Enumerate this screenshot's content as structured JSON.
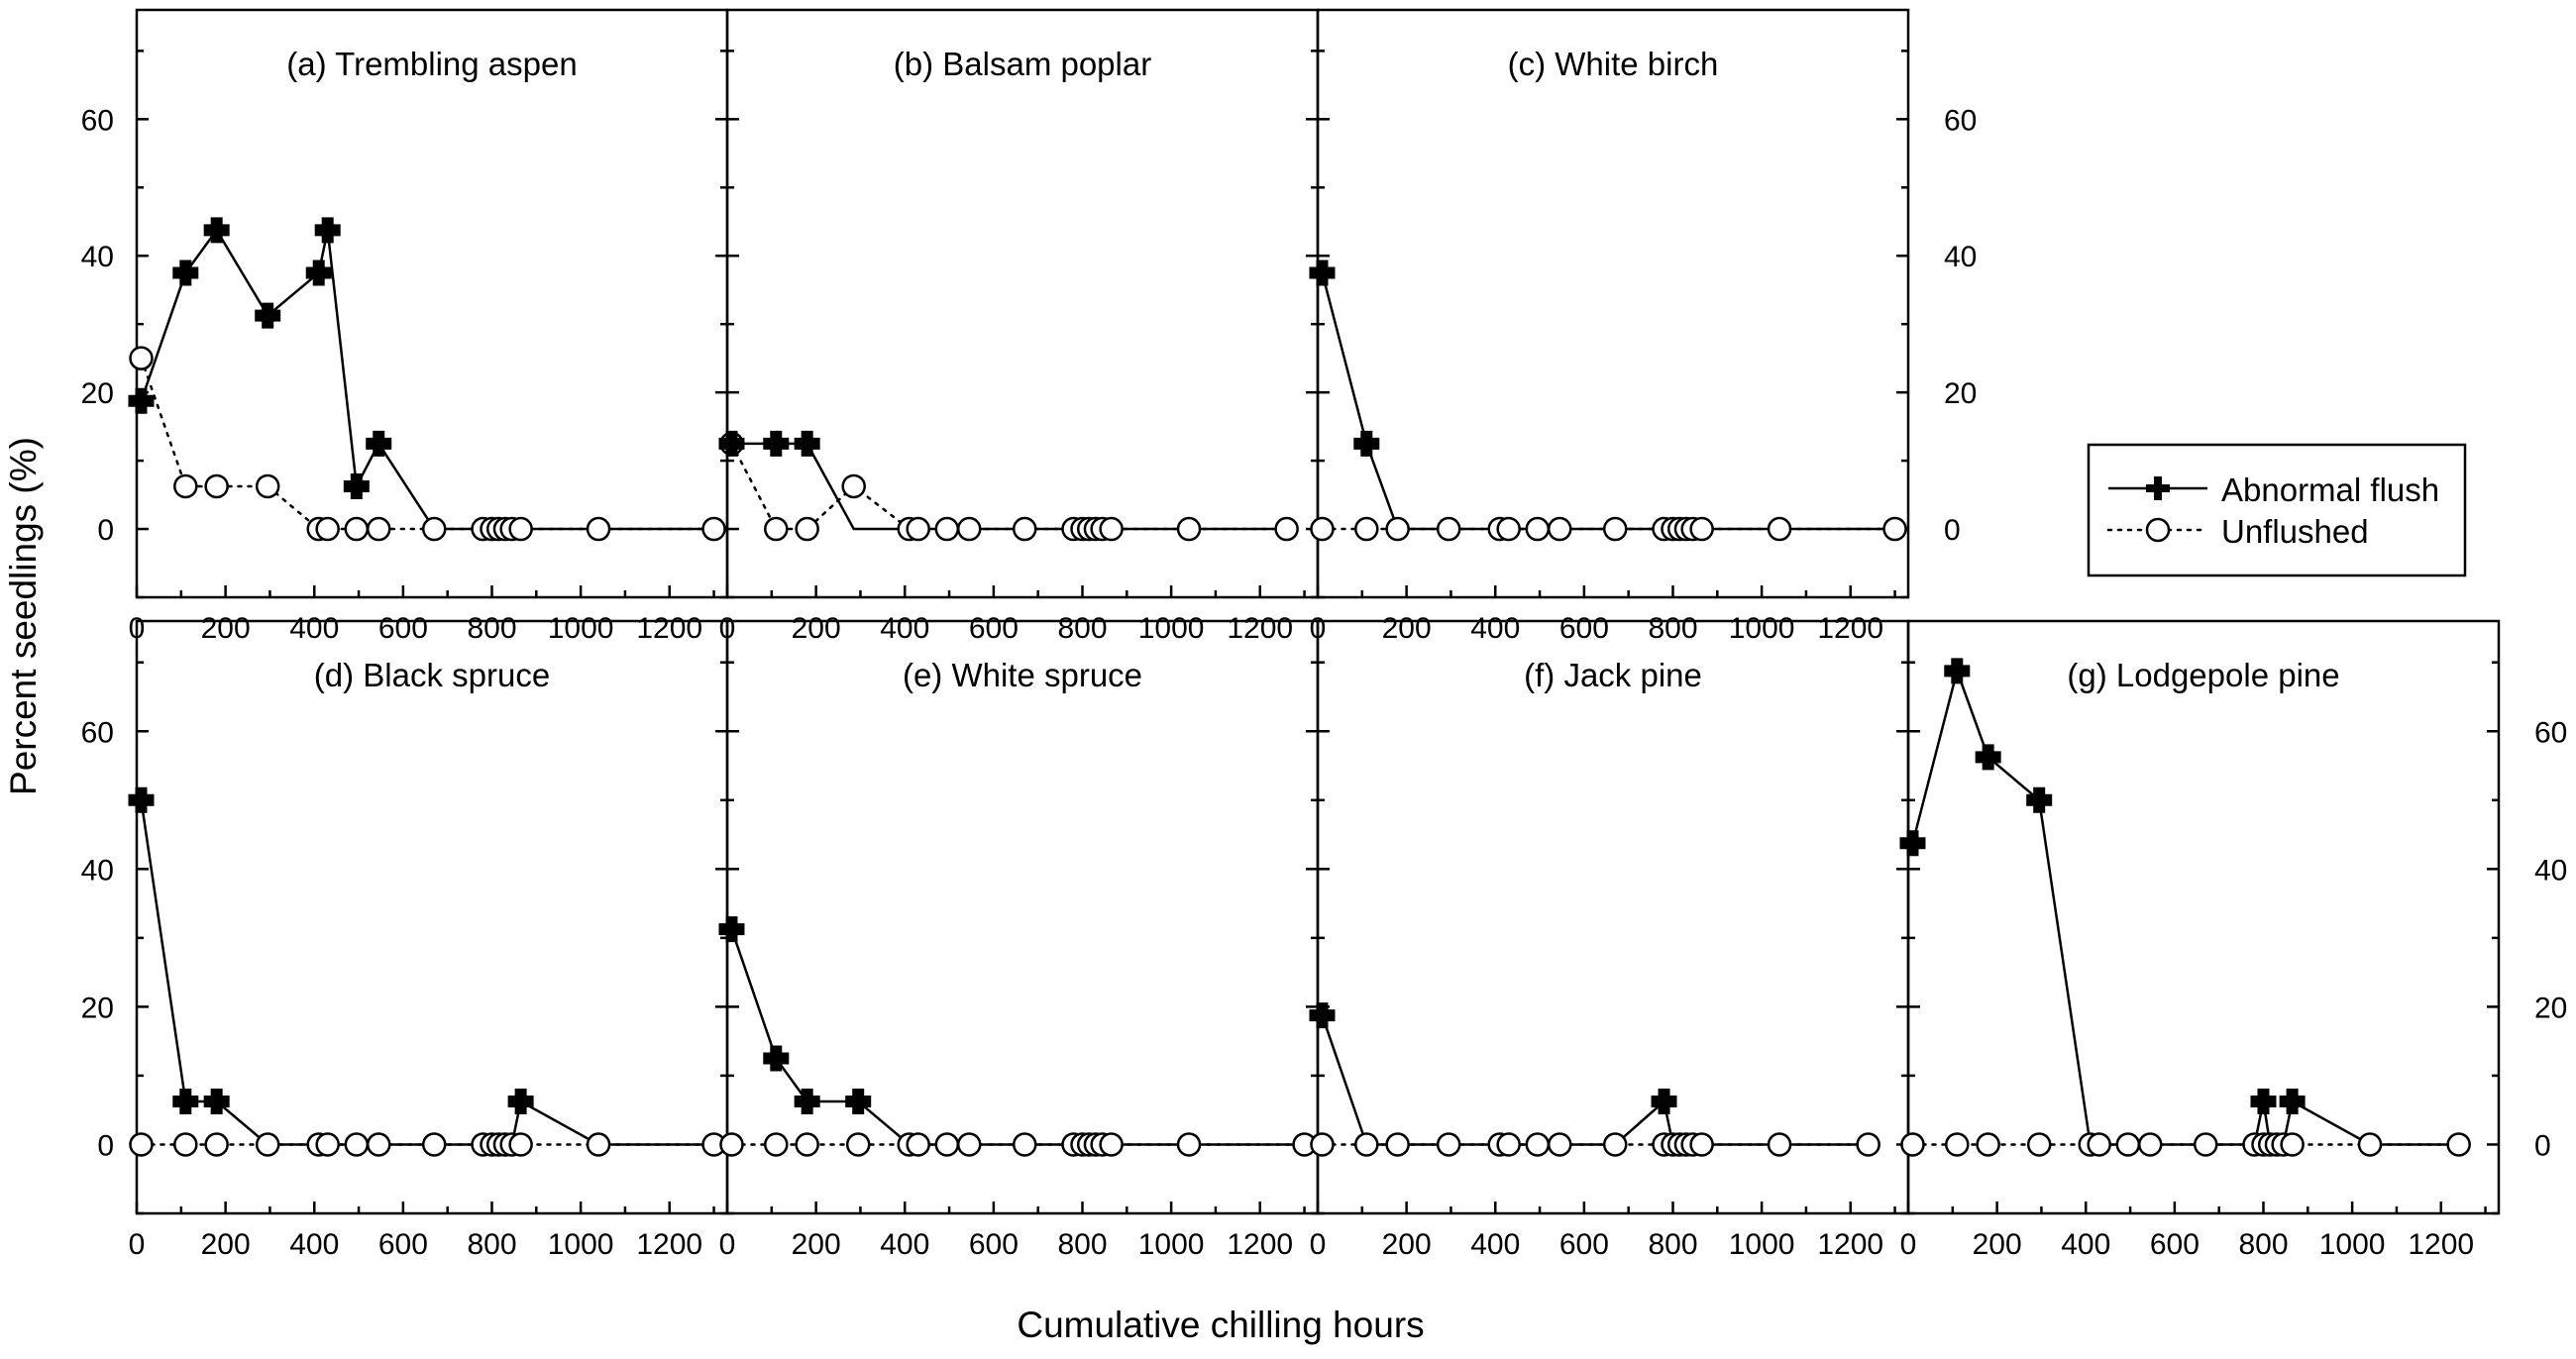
{
  "figure": {
    "ylabel": "Percent seedlings (%)",
    "xlabel": "Cumulative chilling hours",
    "legend": {
      "placement": "right",
      "abnormal_label": "Abnormal flush",
      "unflushed_label": "Unflushed"
    }
  },
  "chart_data": [
    {
      "type": "line",
      "title": "(a) Trembling aspen",
      "xlim": [
        0,
        1330
      ],
      "ylim": [
        -10,
        76
      ],
      "xticks": [
        0,
        200,
        400,
        600,
        800,
        1000,
        1200
      ],
      "yticks": [
        0,
        20,
        40,
        60
      ],
      "left_axis_labels": true,
      "right_axis_labels": false,
      "bottom_axis_labels": true,
      "series": [
        {
          "name": "Abnormal flush",
          "marker": "filled-cross",
          "line": "solid",
          "x": [
            10,
            110,
            180,
            295,
            410,
            430,
            495,
            545,
            670,
            780,
            800,
            815,
            830,
            845,
            865,
            1040,
            1300
          ],
          "y": [
            18.75,
            37.5,
            43.75,
            31.25,
            37.5,
            43.75,
            6.25,
            12.5,
            0,
            0,
            0,
            0,
            0,
            0,
            0,
            0,
            0
          ]
        },
        {
          "name": "Unflushed",
          "marker": "open-circle",
          "line": "dotted",
          "x": [
            10,
            110,
            180,
            295,
            410,
            430,
            495,
            545,
            670,
            780,
            800,
            815,
            830,
            845,
            865,
            1040,
            1300
          ],
          "y": [
            25,
            6.25,
            6.25,
            6.25,
            0,
            0,
            0,
            0,
            0,
            0,
            0,
            0,
            0,
            0,
            0,
            0,
            0
          ]
        }
      ]
    },
    {
      "type": "line",
      "title": "(b) Balsam poplar",
      "xlim": [
        0,
        1330
      ],
      "ylim": [
        -10,
        76
      ],
      "xticks": [
        0,
        200,
        400,
        600,
        800,
        1000,
        1200
      ],
      "yticks": [
        0,
        20,
        40,
        60
      ],
      "left_axis_labels": false,
      "right_axis_labels": false,
      "bottom_axis_labels": true,
      "series": [
        {
          "name": "Abnormal flush",
          "marker": "filled-cross",
          "line": "solid",
          "x": [
            10,
            110,
            180,
            285,
            410,
            430,
            495,
            545,
            670,
            780,
            800,
            815,
            830,
            845,
            865,
            1040,
            1260
          ],
          "y": [
            12.5,
            12.5,
            12.5,
            0,
            0,
            0,
            0,
            0,
            0,
            0,
            0,
            0,
            0,
            0,
            0,
            0,
            0
          ]
        },
        {
          "name": "Unflushed",
          "marker": "open-circle",
          "line": "dotted",
          "x": [
            10,
            110,
            180,
            285,
            410,
            430,
            495,
            545,
            670,
            780,
            800,
            815,
            830,
            845,
            865,
            1040,
            1260
          ],
          "y": [
            12.5,
            0,
            0,
            6.25,
            0,
            0,
            0,
            0,
            0,
            0,
            0,
            0,
            0,
            0,
            0,
            0,
            0
          ]
        }
      ]
    },
    {
      "type": "line",
      "title": "(c) White birch",
      "xlim": [
        0,
        1330
      ],
      "ylim": [
        -10,
        76
      ],
      "xticks": [
        0,
        200,
        400,
        600,
        800,
        1000,
        1200
      ],
      "yticks": [
        0,
        20,
        40,
        60
      ],
      "left_axis_labels": false,
      "right_axis_labels": true,
      "bottom_axis_labels": true,
      "series": [
        {
          "name": "Abnormal flush",
          "marker": "filled-cross",
          "line": "solid",
          "x": [
            10,
            110,
            180,
            295,
            410,
            430,
            495,
            545,
            670,
            780,
            800,
            815,
            830,
            845,
            865,
            1040,
            1300
          ],
          "y": [
            37.5,
            12.5,
            0,
            0,
            0,
            0,
            0,
            0,
            0,
            0,
            0,
            0,
            0,
            0,
            0,
            0,
            0
          ]
        },
        {
          "name": "Unflushed",
          "marker": "open-circle",
          "line": "dotted",
          "x": [
            10,
            110,
            180,
            295,
            410,
            430,
            495,
            545,
            670,
            780,
            800,
            815,
            830,
            845,
            865,
            1040,
            1300
          ],
          "y": [
            0,
            0,
            0,
            0,
            0,
            0,
            0,
            0,
            0,
            0,
            0,
            0,
            0,
            0,
            0,
            0,
            0
          ]
        }
      ]
    },
    {
      "type": "line",
      "title": "(d) Black spruce",
      "xlim": [
        0,
        1330
      ],
      "ylim": [
        -10,
        76
      ],
      "xticks": [
        0,
        200,
        400,
        600,
        800,
        1000,
        1200
      ],
      "yticks": [
        0,
        20,
        40,
        60
      ],
      "left_axis_labels": true,
      "right_axis_labels": false,
      "bottom_axis_labels": true,
      "series": [
        {
          "name": "Abnormal flush",
          "marker": "filled-cross",
          "line": "solid",
          "x": [
            10,
            110,
            180,
            295,
            410,
            430,
            495,
            545,
            670,
            780,
            800,
            815,
            830,
            845,
            865,
            1040,
            1300
          ],
          "y": [
            50,
            6.25,
            6.25,
            0,
            0,
            0,
            0,
            0,
            0,
            0,
            0,
            0,
            0,
            0,
            6.25,
            0,
            0
          ]
        },
        {
          "name": "Unflushed",
          "marker": "open-circle",
          "line": "dotted",
          "x": [
            10,
            110,
            180,
            295,
            410,
            430,
            495,
            545,
            670,
            780,
            800,
            815,
            830,
            845,
            865,
            1040,
            1300
          ],
          "y": [
            0,
            0,
            0,
            0,
            0,
            0,
            0,
            0,
            0,
            0,
            0,
            0,
            0,
            0,
            0,
            0,
            0
          ]
        }
      ]
    },
    {
      "type": "line",
      "title": "(e) White spruce",
      "xlim": [
        0,
        1330
      ],
      "ylim": [
        -10,
        76
      ],
      "xticks": [
        0,
        200,
        400,
        600,
        800,
        1000,
        1200
      ],
      "yticks": [
        0,
        20,
        40,
        60
      ],
      "left_axis_labels": false,
      "right_axis_labels": false,
      "bottom_axis_labels": true,
      "series": [
        {
          "name": "Abnormal flush",
          "marker": "filled-cross",
          "line": "solid",
          "x": [
            10,
            110,
            180,
            295,
            410,
            430,
            495,
            545,
            670,
            780,
            800,
            815,
            830,
            845,
            865,
            1040,
            1300
          ],
          "y": [
            31.25,
            12.5,
            6.25,
            6.25,
            0,
            0,
            0,
            0,
            0,
            0,
            0,
            0,
            0,
            0,
            0,
            0,
            0
          ]
        },
        {
          "name": "Unflushed",
          "marker": "open-circle",
          "line": "dotted",
          "x": [
            10,
            110,
            180,
            295,
            410,
            430,
            495,
            545,
            670,
            780,
            800,
            815,
            830,
            845,
            865,
            1040,
            1300
          ],
          "y": [
            0,
            0,
            0,
            0,
            0,
            0,
            0,
            0,
            0,
            0,
            0,
            0,
            0,
            0,
            0,
            0,
            0
          ]
        }
      ]
    },
    {
      "type": "line",
      "title": "(f) Jack pine",
      "xlim": [
        0,
        1330
      ],
      "ylim": [
        -10,
        76
      ],
      "xticks": [
        0,
        200,
        400,
        600,
        800,
        1000,
        1200
      ],
      "yticks": [
        0,
        20,
        40,
        60
      ],
      "left_axis_labels": false,
      "right_axis_labels": false,
      "bottom_axis_labels": true,
      "series": [
        {
          "name": "Abnormal flush",
          "marker": "filled-cross",
          "line": "solid",
          "x": [
            10,
            110,
            180,
            295,
            410,
            430,
            495,
            545,
            670,
            780,
            800,
            815,
            830,
            845,
            865,
            1040,
            1240
          ],
          "y": [
            18.75,
            0,
            0,
            0,
            0,
            0,
            0,
            0,
            0,
            6.25,
            0,
            0,
            0,
            0,
            0,
            0,
            0
          ]
        },
        {
          "name": "Unflushed",
          "marker": "open-circle",
          "line": "dotted",
          "x": [
            10,
            110,
            180,
            295,
            410,
            430,
            495,
            545,
            670,
            780,
            800,
            815,
            830,
            845,
            865,
            1040,
            1240
          ],
          "y": [
            0,
            0,
            0,
            0,
            0,
            0,
            0,
            0,
            0,
            0,
            0,
            0,
            0,
            0,
            0,
            0,
            0
          ]
        }
      ]
    },
    {
      "type": "line",
      "title": "(g) Lodgepole pine",
      "xlim": [
        0,
        1330
      ],
      "ylim": [
        -10,
        76
      ],
      "xticks": [
        0,
        200,
        400,
        600,
        800,
        1000,
        1200
      ],
      "yticks": [
        0,
        20,
        40,
        60
      ],
      "left_axis_labels": false,
      "right_axis_labels": true,
      "bottom_axis_labels": true,
      "series": [
        {
          "name": "Abnormal flush",
          "marker": "filled-cross",
          "line": "solid",
          "x": [
            10,
            110,
            180,
            295,
            410,
            430,
            495,
            545,
            670,
            780,
            800,
            815,
            830,
            845,
            865,
            1040,
            1240
          ],
          "y": [
            43.75,
            68.75,
            56.25,
            50,
            0,
            0,
            0,
            0,
            0,
            0,
            6.25,
            0,
            0,
            0,
            6.25,
            0,
            0
          ]
        },
        {
          "name": "Unflushed",
          "marker": "open-circle",
          "line": "dotted",
          "x": [
            10,
            110,
            180,
            295,
            410,
            430,
            495,
            545,
            670,
            780,
            800,
            815,
            830,
            845,
            865,
            1040,
            1240
          ],
          "y": [
            0,
            0,
            0,
            0,
            0,
            0,
            0,
            0,
            0,
            0,
            0,
            0,
            0,
            0,
            0,
            0,
            0
          ]
        }
      ]
    }
  ]
}
